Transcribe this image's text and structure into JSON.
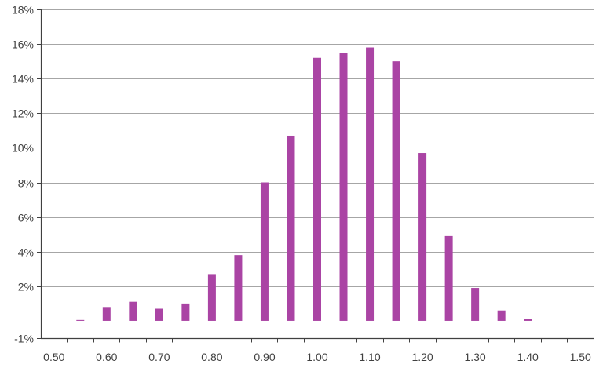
{
  "chart_data": {
    "type": "bar",
    "x": [
      0.5,
      0.55,
      0.6,
      0.65,
      0.7,
      0.75,
      0.8,
      0.85,
      0.9,
      0.95,
      1.0,
      1.05,
      1.1,
      1.15,
      1.2,
      1.25,
      1.3,
      1.35,
      1.4,
      1.45,
      1.5
    ],
    "values": [
      0.0,
      0.05,
      0.8,
      1.1,
      0.7,
      1.0,
      2.7,
      3.8,
      8.0,
      10.7,
      15.2,
      15.5,
      15.8,
      15.0,
      9.7,
      4.9,
      1.9,
      0.6,
      0.1,
      0.0,
      0.0
    ],
    "title": "",
    "xlabel": "",
    "ylabel": "",
    "ylim": [
      -1,
      18
    ],
    "y_tick_labels": [
      "-1%",
      "2%",
      "4%",
      "6%",
      "8%",
      "10%",
      "12%",
      "14%",
      "16%",
      "18%"
    ],
    "y_tick_values": [
      -1,
      2,
      4,
      6,
      8,
      10,
      12,
      14,
      16,
      18
    ],
    "x_tick_labels": [
      "0.50",
      "0.60",
      "0.70",
      "0.80",
      "0.90",
      "1.00",
      "1.10",
      "1.20",
      "1.30",
      "1.40",
      "1.50"
    ],
    "x_tick_values": [
      0.5,
      0.6,
      0.7,
      0.8,
      0.9,
      1.0,
      1.1,
      1.2,
      1.3,
      1.4,
      1.5
    ],
    "grid": true,
    "legend": "none",
    "colors": {
      "bar": "#AA44A4",
      "grid": "#A6A6A6",
      "axis": "#404040",
      "text": "#404040"
    }
  }
}
